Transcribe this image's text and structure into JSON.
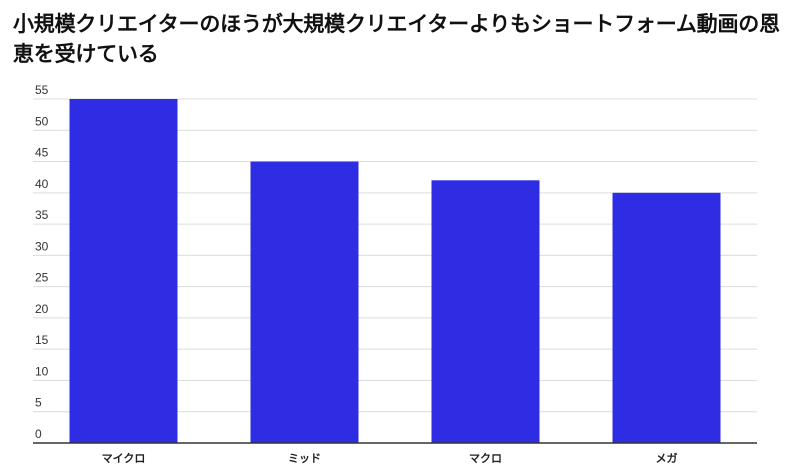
{
  "chart_data": {
    "type": "bar",
    "title": "小規模クリエイターのほうが大規模クリエイターよりもショートフォーム動画の恩恵を受けている",
    "xlabel": "",
    "ylabel": "",
    "categories": [
      "マイクロ",
      "ミッド",
      "マクロ",
      "メガ"
    ],
    "values": [
      55,
      45,
      42,
      40
    ],
    "ylim": [
      0,
      55
    ],
    "yticks": [
      0,
      5,
      10,
      15,
      20,
      25,
      30,
      35,
      40,
      45,
      50,
      55
    ],
    "bar_color": "#2f2de3",
    "grid": true,
    "legend": "none"
  }
}
